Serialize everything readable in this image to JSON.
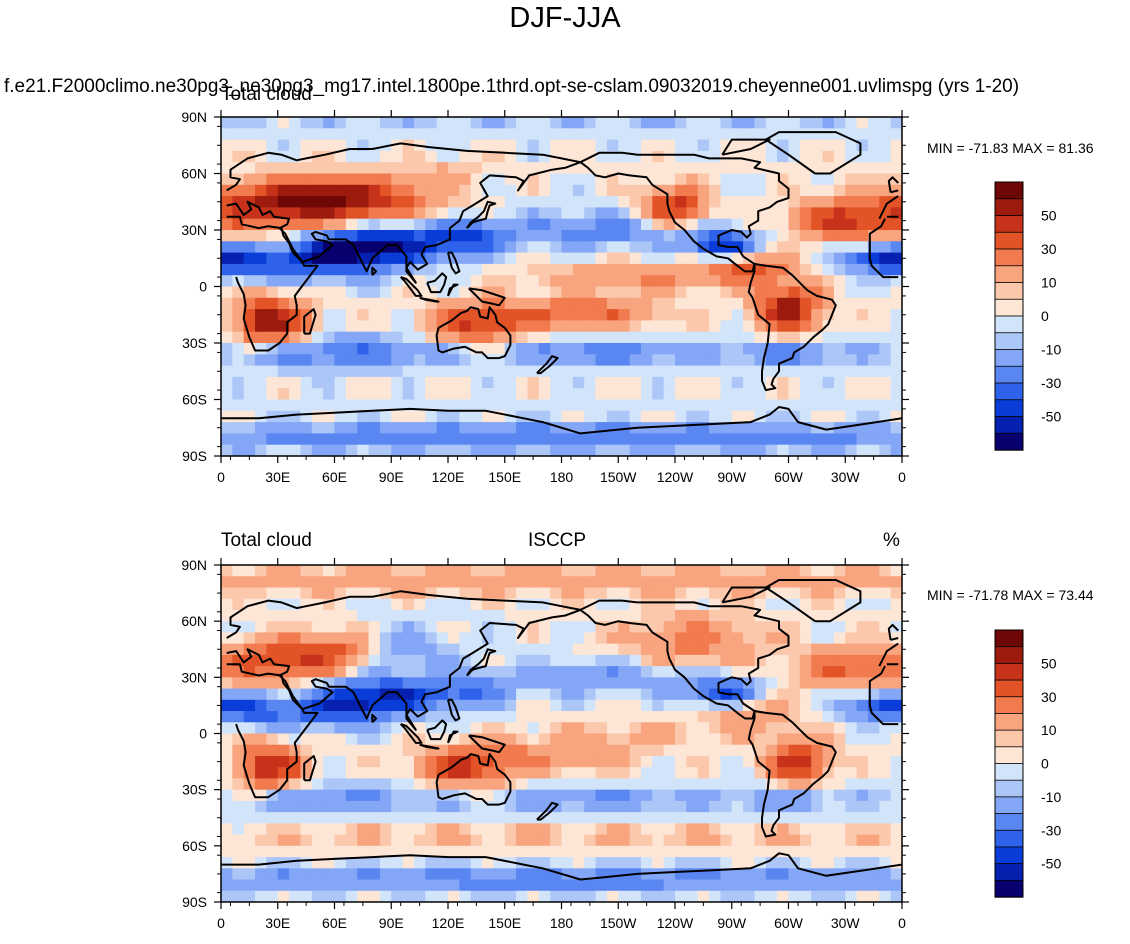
{
  "figure_title": "DJF-JJA",
  "case_name": "f.e21.F2000climo.ne30pg3_ne30pg3_mg17.intel.1800pe.1thrd.opt-se-cslam.09032019.cheyenne001.uvlimspg (yrs 1-20)",
  "colors": {
    "scale": [
      "#08006e",
      "#0620b0",
      "#0a3cd8",
      "#2e62ea",
      "#5a86f2",
      "#84a6f6",
      "#acc6f8",
      "#d2e4fa",
      "#fde6d6",
      "#fbc8ac",
      "#f8a47e",
      "#f17a4e",
      "#e25428",
      "#c6321a",
      "#9c1a0e",
      "#6e0806"
    ],
    "coast": "#000000"
  },
  "chart_data": [
    {
      "type": "heatmap",
      "panel": "top",
      "left_title": "Total cloud",
      "center_title": "",
      "right_title": "",
      "variable": "Total cloud",
      "units": "%",
      "min_label": "MIN = -71.83 MAX =  81.36",
      "min": -71.83,
      "max": 81.36,
      "colorbar_levels": [
        -70,
        -60,
        -50,
        -40,
        -30,
        -20,
        -10,
        -5,
        0,
        5,
        10,
        20,
        30,
        40,
        50,
        60,
        70
      ],
      "colorbar_tick_labels": [
        "50",
        "30",
        "10",
        "0",
        "-10",
        "-30",
        "-50"
      ],
      "xlim": [
        0,
        360
      ],
      "ylim": [
        -90,
        90
      ],
      "x_tick_labels": [
        "0",
        "30E",
        "60E",
        "90E",
        "120E",
        "150E",
        "180",
        "150W",
        "120W",
        "90W",
        "60W",
        "30W",
        "0"
      ],
      "y_tick_labels": [
        "90N",
        "60N",
        "30N",
        "0",
        "30S",
        "60S",
        "90S"
      ]
    },
    {
      "type": "heatmap",
      "panel": "bottom",
      "left_title": "Total cloud",
      "center_title": "ISCCP",
      "right_title": "%",
      "variable": "Total cloud",
      "units": "%",
      "min_label": "MIN = -71.78 MAX =  73.44",
      "min": -71.78,
      "max": 73.44,
      "colorbar_levels": [
        -70,
        -60,
        -50,
        -40,
        -30,
        -20,
        -10,
        -5,
        0,
        5,
        10,
        20,
        30,
        40,
        50,
        60,
        70
      ],
      "colorbar_tick_labels": [
        "50",
        "30",
        "10",
        "0",
        "-10",
        "-30",
        "-50"
      ],
      "xlim": [
        0,
        360
      ],
      "ylim": [
        -90,
        90
      ],
      "x_tick_labels": [
        "0",
        "30E",
        "60E",
        "90E",
        "120E",
        "150E",
        "180",
        "150W",
        "120W",
        "90W",
        "60W",
        "30W",
        "0"
      ],
      "y_tick_labels": [
        "90N",
        "60N",
        "30N",
        "0",
        "30S",
        "60S",
        "90S"
      ]
    }
  ]
}
